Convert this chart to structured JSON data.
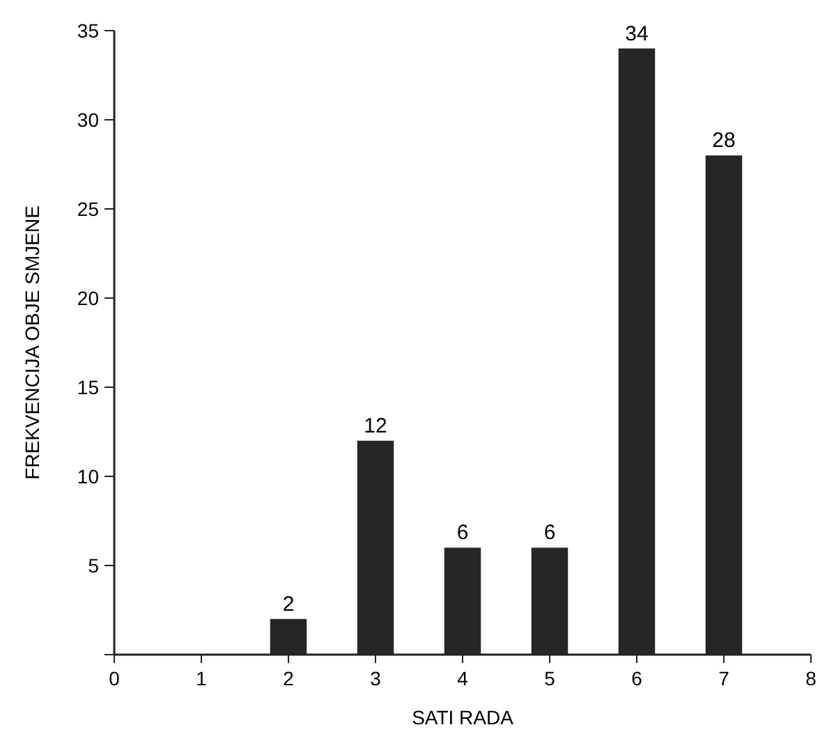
{
  "chart_data": {
    "type": "bar",
    "xlabel": "SATI RADA",
    "ylabel": "FREKVENCIJA OBJE SMJENE",
    "x": [
      2,
      3,
      4,
      5,
      6,
      7
    ],
    "values": [
      2,
      12,
      6,
      6,
      34,
      28
    ],
    "color": "#262626",
    "xlim": [
      0,
      8
    ],
    "xticks": [
      0,
      1,
      2,
      3,
      4,
      5,
      6,
      7,
      8
    ],
    "ylim": [
      0,
      35
    ],
    "yticks": [
      {
        "value": 0,
        "label": null
      },
      5,
      10,
      15,
      20,
      25,
      30,
      35
    ],
    "data_labels": true
  }
}
